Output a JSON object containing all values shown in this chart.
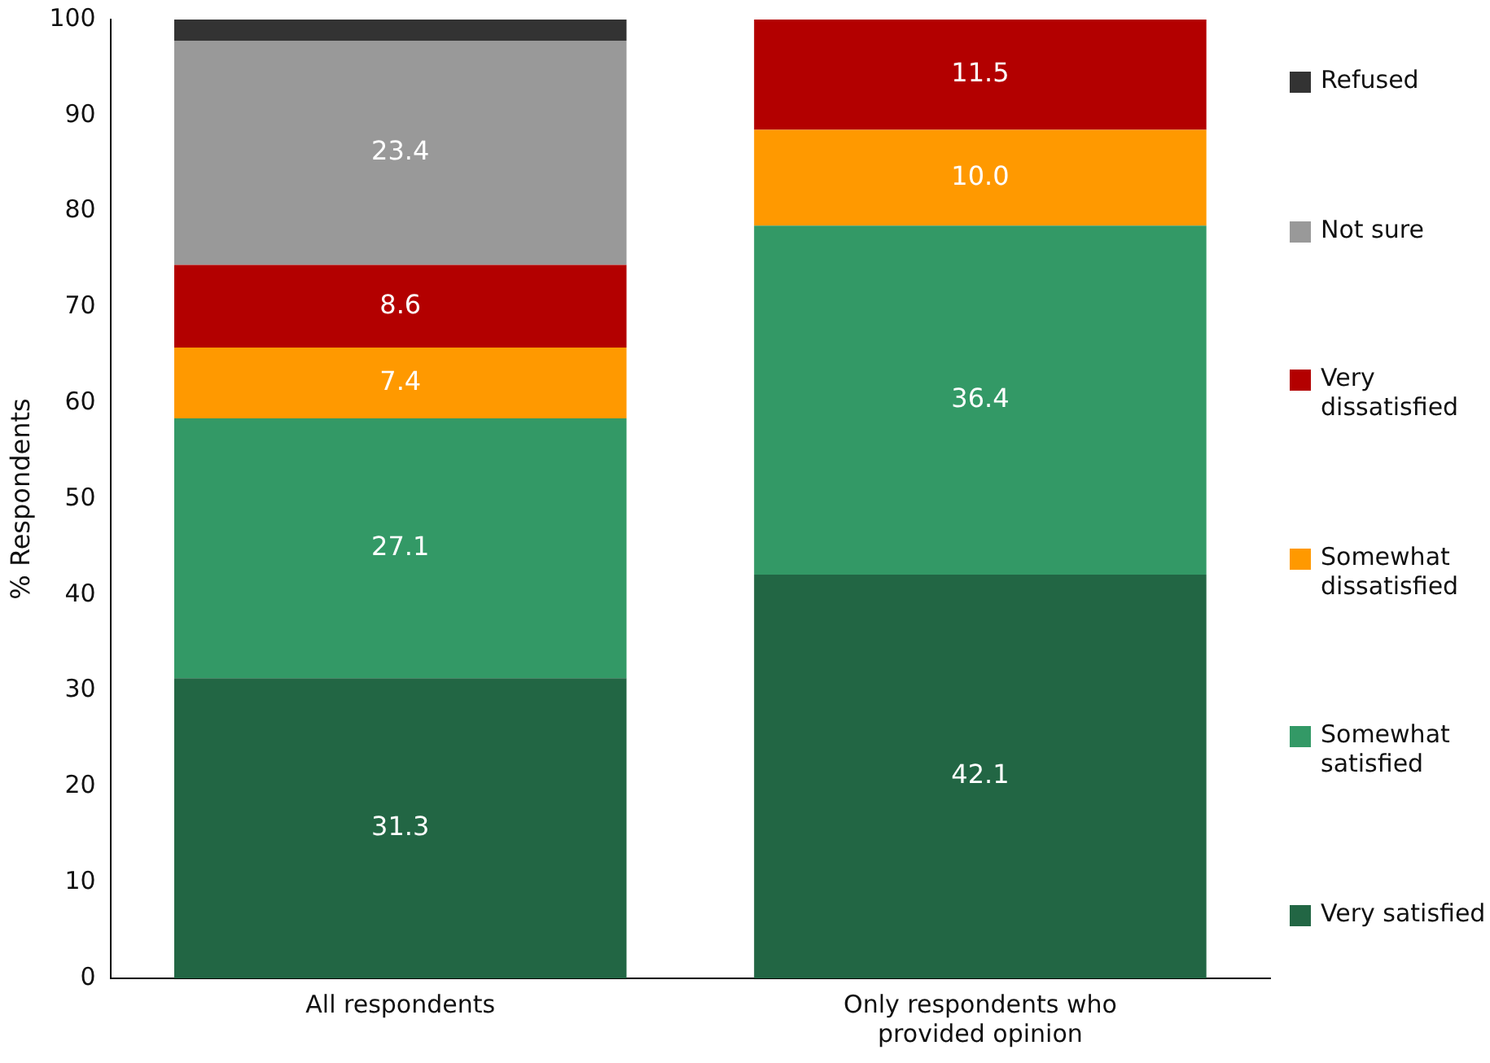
{
  "chart_data": {
    "type": "bar",
    "stacked": true,
    "ylabel": "% Respondents",
    "categories": [
      "All respondents",
      "Only respondents who provided opinion"
    ],
    "ylim": [
      0,
      100
    ],
    "yticks": [
      0,
      10,
      20,
      30,
      40,
      50,
      60,
      70,
      80,
      90,
      100
    ],
    "grid": false,
    "legend": "right",
    "series": [
      {
        "name": "Very satisfied",
        "color": "#226644",
        "values": [
          31.3,
          42.1
        ],
        "value_labels": [
          "31.3",
          "42.1"
        ]
      },
      {
        "name": "Somewhat satisfied",
        "color": "#339966",
        "values": [
          27.1,
          36.4
        ],
        "value_labels": [
          "27.1",
          "36.4"
        ]
      },
      {
        "name": "Somewhat dissatisfied",
        "color": "#ff9900",
        "values": [
          7.4,
          10.0
        ],
        "value_labels": [
          "7.4",
          "10.0"
        ]
      },
      {
        "name": "Very dissatisfied",
        "color": "#b30000",
        "values": [
          8.6,
          11.5
        ],
        "value_labels": [
          "8.6",
          "11.5"
        ]
      },
      {
        "name": "Not sure",
        "color": "#999999",
        "values": [
          23.4,
          null
        ],
        "value_labels": [
          "23.4",
          null
        ]
      },
      {
        "name": "Refused",
        "color": "#333333",
        "values": [
          2.2,
          null
        ],
        "value_labels": [
          null,
          null
        ]
      }
    ]
  }
}
